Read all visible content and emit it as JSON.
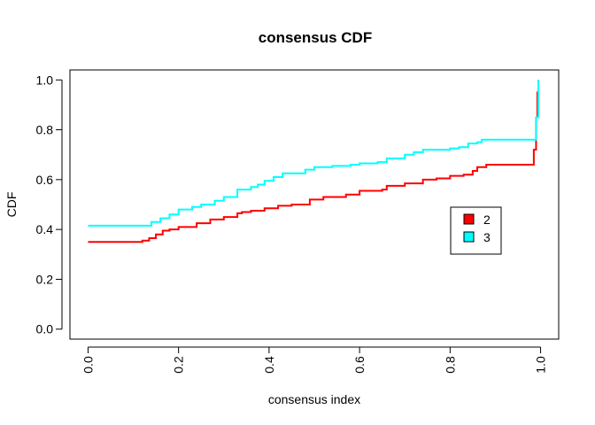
{
  "chart_data": {
    "type": "line",
    "title": "consensus CDF",
    "xlabel": "consensus index",
    "ylabel": "CDF",
    "xlim": [
      -0.04,
      1.04
    ],
    "ylim": [
      -0.04,
      1.04
    ],
    "xticks": [
      "0.0",
      "0.2",
      "0.4",
      "0.6",
      "0.8",
      "1.0"
    ],
    "xtick_values": [
      0.0,
      0.2,
      0.4,
      0.6,
      0.8,
      1.0
    ],
    "yticks": [
      "0.0",
      "0.2",
      "0.4",
      "0.6",
      "0.8",
      "1.0"
    ],
    "ytick_values": [
      0.0,
      0.2,
      0.4,
      0.6,
      0.8,
      1.0
    ],
    "grid": false,
    "legend_position": "right",
    "series": [
      {
        "name": "2",
        "color": "#ff0000",
        "legend_fill": "#ff0000",
        "step": true,
        "x": [
          0.0,
          0.12,
          0.135,
          0.15,
          0.165,
          0.18,
          0.2,
          0.24,
          0.27,
          0.3,
          0.33,
          0.34,
          0.36,
          0.39,
          0.42,
          0.45,
          0.49,
          0.52,
          0.57,
          0.6,
          0.65,
          0.66,
          0.7,
          0.74,
          0.77,
          0.8,
          0.83,
          0.85,
          0.86,
          0.88,
          0.98,
          0.985,
          0.99,
          0.993,
          0.995
        ],
        "y": [
          0.35,
          0.355,
          0.365,
          0.38,
          0.395,
          0.4,
          0.41,
          0.425,
          0.44,
          0.45,
          0.465,
          0.47,
          0.475,
          0.485,
          0.495,
          0.5,
          0.52,
          0.53,
          0.54,
          0.555,
          0.56,
          0.575,
          0.585,
          0.6,
          0.605,
          0.615,
          0.62,
          0.635,
          0.65,
          0.66,
          0.66,
          0.72,
          0.85,
          0.95,
          1.0
        ]
      },
      {
        "name": "3",
        "color": "#00ffff",
        "legend_fill": "#00ffff",
        "step": true,
        "x": [
          0.0,
          0.13,
          0.14,
          0.16,
          0.18,
          0.2,
          0.23,
          0.25,
          0.28,
          0.3,
          0.33,
          0.36,
          0.375,
          0.39,
          0.41,
          0.43,
          0.48,
          0.5,
          0.54,
          0.58,
          0.6,
          0.64,
          0.66,
          0.7,
          0.72,
          0.74,
          0.8,
          0.82,
          0.84,
          0.86,
          0.87,
          0.89,
          0.985,
          0.99,
          0.995
        ],
        "y": [
          0.415,
          0.415,
          0.43,
          0.445,
          0.46,
          0.48,
          0.49,
          0.5,
          0.515,
          0.53,
          0.56,
          0.57,
          0.58,
          0.595,
          0.61,
          0.625,
          0.64,
          0.65,
          0.655,
          0.66,
          0.665,
          0.67,
          0.685,
          0.7,
          0.71,
          0.72,
          0.725,
          0.73,
          0.745,
          0.75,
          0.76,
          0.76,
          0.76,
          0.85,
          1.0
        ]
      }
    ]
  }
}
